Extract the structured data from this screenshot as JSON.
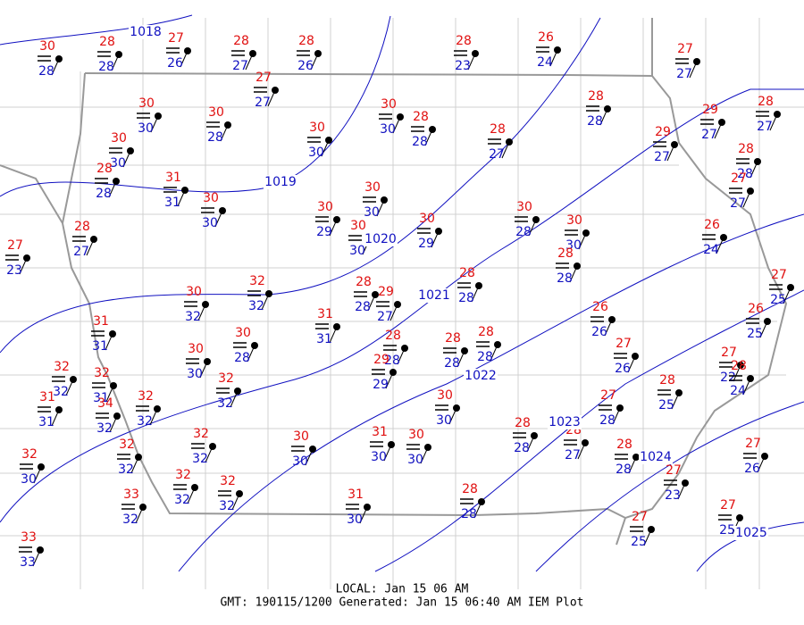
{
  "stations": [
    {
      "temp": 30,
      "dewpoint": 28
    },
    {
      "temp": 28,
      "dewpoint": 28
    },
    {
      "temp": 27,
      "dewpoint": 26
    },
    {
      "temp": 28,
      "dewpoint": 27
    },
    {
      "temp": 28,
      "dewpoint": 26
    },
    {
      "temp": 28,
      "dewpoint": 23
    },
    {
      "temp": 26,
      "dewpoint": 24
    },
    {
      "temp": 27,
      "dewpoint": 27
    },
    {
      "temp": 30,
      "dewpoint": 30
    },
    {
      "temp": 27,
      "dewpoint": 27
    },
    {
      "temp": 30,
      "dewpoint": 30
    },
    {
      "temp": 28,
      "dewpoint": 28
    },
    {
      "temp": 28,
      "dewpoint": 27
    },
    {
      "temp": 28,
      "dewpoint": 28
    },
    {
      "temp": 30,
      "dewpoint": 30
    },
    {
      "temp": 30,
      "dewpoint": 28
    },
    {
      "temp": 30,
      "dewpoint": 30
    },
    {
      "temp": 29,
      "dewpoint": 27
    },
    {
      "temp": 29,
      "dewpoint": 27
    },
    {
      "temp": 28,
      "dewpoint": 27
    },
    {
      "temp": 28,
      "dewpoint": 28
    },
    {
      "temp": 28,
      "dewpoint": 28
    },
    {
      "temp": 31,
      "dewpoint": 31
    },
    {
      "temp": 30,
      "dewpoint": 30
    },
    {
      "temp": 30,
      "dewpoint": 30
    },
    {
      "temp": 30,
      "dewpoint": 29
    },
    {
      "temp": 30,
      "dewpoint": 28
    },
    {
      "temp": 30,
      "dewpoint": 29
    },
    {
      "temp": 30,
      "dewpoint": 30
    },
    {
      "temp": 26,
      "dewpoint": 24
    },
    {
      "temp": 27,
      "dewpoint": 27
    },
    {
      "temp": 27,
      "dewpoint": 23
    },
    {
      "temp": 28,
      "dewpoint": 27
    },
    {
      "temp": 30,
      "dewpoint": 30
    },
    {
      "temp": 28,
      "dewpoint": 28
    },
    {
      "temp": 30,
      "dewpoint": 32
    },
    {
      "temp": 32,
      "dewpoint": 32
    },
    {
      "temp": 28,
      "dewpoint": 28
    },
    {
      "temp": 28,
      "dewpoint": 28
    },
    {
      "temp": 29,
      "dewpoint": 27
    },
    {
      "temp": 31,
      "dewpoint": 31
    },
    {
      "temp": 31,
      "dewpoint": 31
    },
    {
      "temp": 26,
      "dewpoint": 26
    },
    {
      "temp": 28,
      "dewpoint": 28
    },
    {
      "temp": 28,
      "dewpoint": 28
    },
    {
      "temp": 28,
      "dewpoint": 28
    },
    {
      "temp": 30,
      "dewpoint": 30
    },
    {
      "temp": 30,
      "dewpoint": 28
    },
    {
      "temp": 29,
      "dewpoint": 29
    },
    {
      "temp": 27,
      "dewpoint": 26
    },
    {
      "temp": 27,
      "dewpoint": 25
    },
    {
      "temp": 26,
      "dewpoint": 25
    },
    {
      "temp": 27,
      "dewpoint": 22
    },
    {
      "temp": 28,
      "dewpoint": 24
    },
    {
      "temp": 32,
      "dewpoint": 32
    },
    {
      "temp": 32,
      "dewpoint": 31
    },
    {
      "temp": 34,
      "dewpoint": 32
    },
    {
      "temp": 32,
      "dewpoint": 32
    },
    {
      "temp": 32,
      "dewpoint": 32
    },
    {
      "temp": 31,
      "dewpoint": 31
    },
    {
      "temp": 30,
      "dewpoint": 30
    },
    {
      "temp": 27,
      "dewpoint": 28
    },
    {
      "temp": 28,
      "dewpoint": 25
    },
    {
      "temp": 28,
      "dewpoint": 28
    },
    {
      "temp": 28,
      "dewpoint": 27
    },
    {
      "temp": 28,
      "dewpoint": 28
    },
    {
      "temp": 32,
      "dewpoint": 32
    },
    {
      "temp": 30,
      "dewpoint": 30
    },
    {
      "temp": 31,
      "dewpoint": 30
    },
    {
      "temp": 30,
      "dewpoint": 30
    },
    {
      "temp": 32,
      "dewpoint": 32
    },
    {
      "temp": 32,
      "dewpoint": 30
    },
    {
      "temp": 27,
      "dewpoint": 26
    },
    {
      "temp": 27,
      "dewpoint": 23
    },
    {
      "temp": 32,
      "dewpoint": 32
    },
    {
      "temp": 32,
      "dewpoint": 32
    },
    {
      "temp": 33,
      "dewpoint": 32
    },
    {
      "temp": 31,
      "dewpoint": 30
    },
    {
      "temp": 28,
      "dewpoint": 28
    },
    {
      "temp": 27,
      "dewpoint": 25
    },
    {
      "temp": 27,
      "dewpoint": 25
    },
    {
      "temp": 33,
      "dewpoint": 33
    }
  ],
  "isobars": [
    1018,
    1019,
    1020,
    1021,
    1022,
    1023,
    1024,
    1025
  ],
  "footer": {
    "local": "LOCAL: Jan 15 06 AM",
    "gmt": "GMT: 190115/1200 Generated: Jan 15 06:40 AM IEM Plot"
  }
}
